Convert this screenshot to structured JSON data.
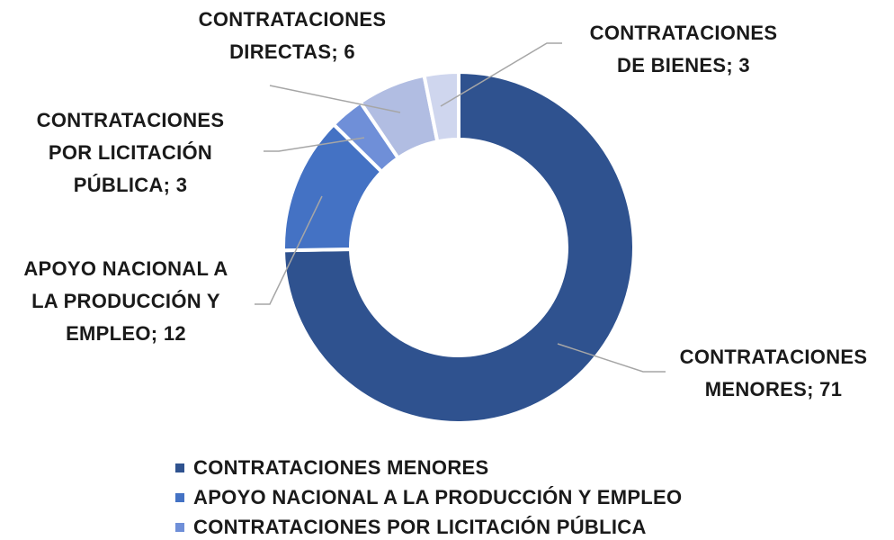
{
  "chart_data": {
    "type": "donut",
    "categories": [
      "CONTRATACIONES MENORES",
      "APOYO NACIONAL A LA PRODUCCIÓN Y EMPLEO",
      "CONTRATACIONES POR LICITACIÓN PÚBLICA",
      "CONTRATACIONES DIRECTAS",
      "CONTRATACIONES DE BIENES"
    ],
    "values": [
      71,
      12,
      3,
      6,
      3
    ],
    "colors": [
      "#2f528f",
      "#4472c4",
      "#6f8fd8",
      "#b1bde2",
      "#cfd6ee"
    ],
    "label_separator": "; ",
    "legend": "bottom"
  }
}
